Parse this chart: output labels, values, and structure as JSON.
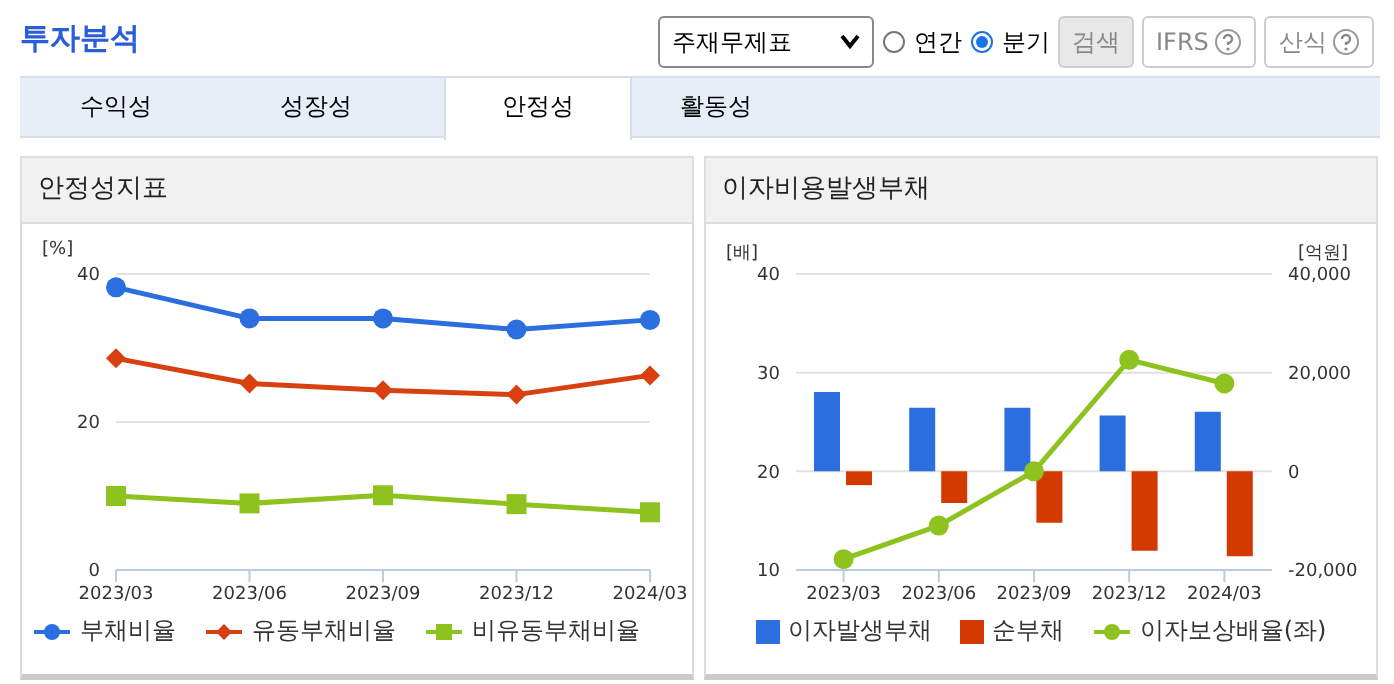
{
  "chart_data": [
    {
      "type": "line",
      "title": "안정성지표",
      "ylabel": "[%]",
      "annotations": [
        "투자분석",
        "주재무제표",
        "연간",
        "분기",
        "검색",
        "IFRS",
        "산식",
        "수익성",
        "성장성",
        "안정성",
        "활동성"
      ],
      "categories": [
        "2023/03",
        "2023/06",
        "2023/09",
        "2023/12",
        "2024/03"
      ],
      "series": [
        {
          "name": "부채비율",
          "color": "#2a6ee0",
          "marker": "circle",
          "values": [
            38.2,
            34.0,
            34.0,
            32.5,
            33.8
          ]
        },
        {
          "name": "유동부채비율",
          "color": "#d9400f",
          "marker": "diamond",
          "values": [
            28.6,
            25.2,
            24.3,
            23.7,
            26.3
          ]
        },
        {
          "name": "비유동부채비율",
          "color": "#8dc21f",
          "marker": "square",
          "values": [
            10.0,
            9.0,
            10.1,
            8.9,
            7.8
          ]
        }
      ],
      "ylim": [
        0,
        40
      ],
      "yticks": [
        0,
        20,
        40
      ],
      "grid": "y",
      "legend": "bottom"
    },
    {
      "type": "bar",
      "title": "이자비용발생부채",
      "ylabel": "[배]",
      "y2label": "[억원]",
      "categories": [
        "2023/03",
        "2023/06",
        "2023/09",
        "2023/12",
        "2024/03"
      ],
      "series": [
        {
          "name": "이자발생부채",
          "color": "#2a6ee0",
          "axis": "y2",
          "values": [
            16100,
            12900,
            12900,
            11300,
            12100
          ]
        },
        {
          "name": "순부채",
          "color": "#d33a00",
          "axis": "y2",
          "values": [
            -2800,
            -6400,
            -10400,
            -16100,
            -17200
          ]
        },
        {
          "name": "이자보상배율(좌)",
          "type": "line",
          "color": "#8dc21f",
          "marker": "circle",
          "values": [
            11.1,
            14.5,
            20.0,
            31.3,
            28.9
          ]
        }
      ],
      "ylim": [
        10,
        40
      ],
      "yticks": [
        10,
        20,
        30,
        40
      ],
      "y2lim": [
        -20000,
        40000
      ],
      "y2ticks": [
        {
          "value": -20000,
          "label": "-20,000"
        },
        0,
        {
          "value": 20000,
          "label": "20,000"
        },
        {
          "value": 40000,
          "label": "40,000"
        }
      ],
      "grid": "y",
      "legend": "bottom"
    }
  ]
}
